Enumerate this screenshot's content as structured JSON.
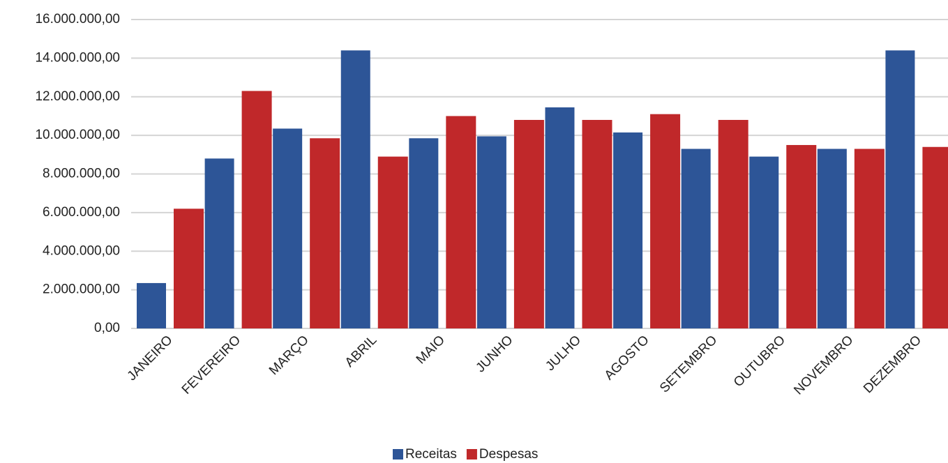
{
  "chart_data": {
    "type": "bar",
    "categories": [
      "JANEIRO",
      "FEVEREIRO",
      "MARÇO",
      "ABRIL",
      "MAIO",
      "JUNHO",
      "JULHO",
      "AGOSTO",
      "SETEMBRO",
      "OUTUBRO",
      "NOVEMBRO",
      "DEZEMBRO"
    ],
    "series": [
      {
        "name": "Receitas",
        "color": "#2d5597",
        "values": [
          2350000,
          8800000,
          10350000,
          14400000,
          9850000,
          9950000,
          11450000,
          10150000,
          9300000,
          8900000,
          9300000,
          14400000
        ]
      },
      {
        "name": "Despesas",
        "color": "#c0282a",
        "values": [
          6200000,
          12300000,
          9850000,
          8900000,
          11000000,
          10800000,
          10800000,
          11100000,
          10800000,
          9500000,
          9300000,
          9400000
        ]
      }
    ],
    "ylim": [
      0,
      16000000
    ],
    "yticks": [
      {
        "value": 0,
        "label": "0,00"
      },
      {
        "value": 2000000,
        "label": "2.000.000,00"
      },
      {
        "value": 4000000,
        "label": "4.000.000,00"
      },
      {
        "value": 6000000,
        "label": "6.000.000,00"
      },
      {
        "value": 8000000,
        "label": "8.000.000,00"
      },
      {
        "value": 10000000,
        "label": "10.000.000,00"
      },
      {
        "value": 12000000,
        "label": "12.000.000,00"
      },
      {
        "value": 14000000,
        "label": "14.000.000,00"
      },
      {
        "value": 16000000,
        "label": "16.000.000,00"
      }
    ],
    "grid": true,
    "legend": "bottom"
  }
}
